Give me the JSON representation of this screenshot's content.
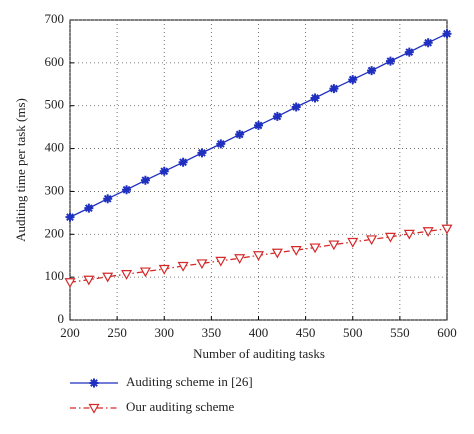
{
  "chart_data": {
    "type": "line",
    "x_label": "Number of auditing tasks",
    "y_label": "Auditing time per task (ms)",
    "x": [
      200,
      220,
      240,
      260,
      280,
      300,
      320,
      340,
      360,
      380,
      400,
      420,
      440,
      460,
      480,
      500,
      520,
      540,
      560,
      580,
      600
    ],
    "series": [
      {
        "name": "Auditing scheme in [26]",
        "color": "#1f2fbf",
        "dash": "solid",
        "marker": "star",
        "values": [
          240,
          261,
          283,
          304,
          326,
          347,
          368,
          390,
          411,
          433,
          454,
          475,
          497,
          518,
          540,
          561,
          582,
          604,
          625,
          647,
          668
        ]
      },
      {
        "name": "Our auditing scheme",
        "color": "#d42a2a",
        "dash": "dashdot",
        "marker": "triangle-down",
        "values": [
          88,
          94,
          101,
          107,
          113,
          119,
          126,
          132,
          138,
          144,
          151,
          157,
          163,
          169,
          176,
          182,
          188,
          194,
          201,
          207,
          213
        ]
      }
    ],
    "xlim": [
      200,
      600
    ],
    "xticks": [
      200,
      250,
      300,
      350,
      400,
      450,
      500,
      550,
      600
    ],
    "ylim": [
      0,
      700
    ],
    "yticks": [
      0,
      100,
      200,
      300,
      400,
      500,
      600,
      700
    ],
    "grid": true,
    "legend": "below"
  }
}
